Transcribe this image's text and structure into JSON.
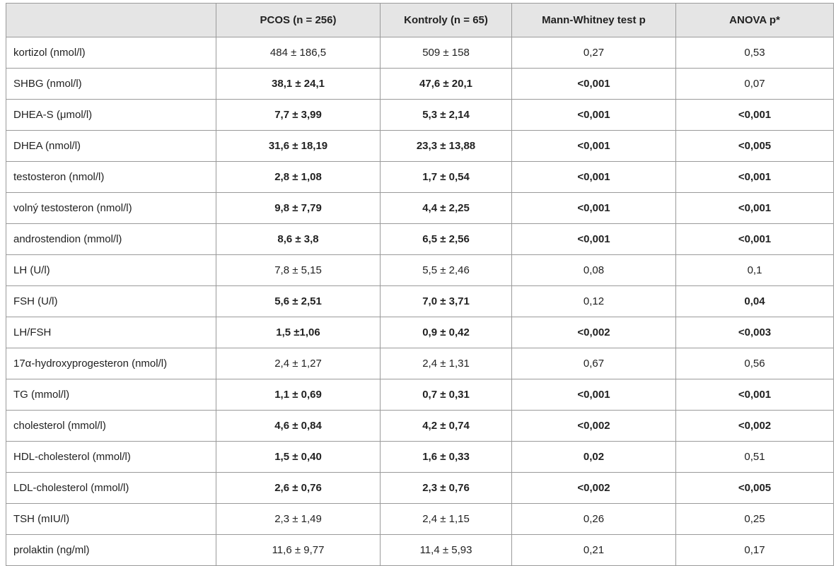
{
  "table": {
    "header": [
      "",
      "PCOS (n = 256)",
      "Kontroly (n = 65)",
      "Mann-Whitney test p",
      "ANOVA p*"
    ],
    "rows": [
      {
        "cells": [
          "kortizol (nmol/l)",
          "484 ± 186,5",
          "509 ± 158",
          "0,27",
          "0,53"
        ],
        "bold": [
          false,
          false,
          false,
          false
        ]
      },
      {
        "cells": [
          "SHBG (nmol/l)",
          "38,1 ± 24,1",
          "47,6 ± 20,1",
          "<0,001",
          "0,07"
        ],
        "bold": [
          true,
          true,
          true,
          false
        ]
      },
      {
        "cells": [
          "DHEA-S (μmol/l)",
          "7,7 ± 3,99",
          "5,3 ± 2,14",
          "<0,001",
          "<0,001"
        ],
        "bold": [
          true,
          true,
          true,
          true
        ]
      },
      {
        "cells": [
          "DHEA (nmol/l)",
          "31,6 ± 18,19",
          "23,3 ± 13,88",
          "<0,001",
          "<0,005"
        ],
        "bold": [
          true,
          true,
          true,
          true
        ]
      },
      {
        "cells": [
          "testosteron (nmol/l)",
          "2,8 ± 1,08",
          "1,7 ± 0,54",
          "<0,001",
          "<0,001"
        ],
        "bold": [
          true,
          true,
          true,
          true
        ]
      },
      {
        "cells": [
          "volný testosteron (nmol/l)",
          "9,8 ± 7,79",
          "4,4 ± 2,25",
          "<0,001",
          "<0,001"
        ],
        "bold": [
          true,
          true,
          true,
          true
        ]
      },
      {
        "cells": [
          "androstendion (mmol/l)",
          "8,6 ± 3,8",
          "6,5 ± 2,56",
          "<0,001",
          "<0,001"
        ],
        "bold": [
          true,
          true,
          true,
          true
        ]
      },
      {
        "cells": [
          "LH (U/l)",
          "7,8 ± 5,15",
          "5,5 ± 2,46",
          "0,08",
          "0,1"
        ],
        "bold": [
          false,
          false,
          false,
          false
        ]
      },
      {
        "cells": [
          "FSH (U/l)",
          "5,6 ± 2,51",
          "7,0 ± 3,71",
          "0,12",
          "0,04"
        ],
        "bold": [
          true,
          true,
          false,
          true
        ]
      },
      {
        "cells": [
          "LH/FSH",
          "1,5 ±1,06",
          "0,9 ± 0,42",
          "<0,002",
          "<0,003"
        ],
        "bold": [
          true,
          true,
          true,
          true
        ]
      },
      {
        "cells": [
          "17α-hydroxyprogesteron (nmol/l)",
          "2,4 ± 1,27",
          "2,4 ± 1,31",
          "0,67",
          "0,56"
        ],
        "bold": [
          false,
          false,
          false,
          false
        ]
      },
      {
        "cells": [
          "TG (mmol/l)",
          "1,1 ± 0,69",
          "0,7 ± 0,31",
          "<0,001",
          "<0,001"
        ],
        "bold": [
          true,
          true,
          true,
          true
        ]
      },
      {
        "cells": [
          "cholesterol (mmol/l)",
          "4,6 ± 0,84",
          "4,2 ± 0,74",
          "<0,002",
          "<0,002"
        ],
        "bold": [
          true,
          true,
          true,
          true
        ]
      },
      {
        "cells": [
          "HDL-cholesterol (mmol/l)",
          "1,5 ± 0,40",
          "1,6 ± 0,33",
          "0,02",
          "0,51"
        ],
        "bold": [
          true,
          true,
          true,
          false
        ]
      },
      {
        "cells": [
          "LDL-cholesterol (mmol/l)",
          "2,6 ± 0,76",
          "2,3 ± 0,76",
          "<0,002",
          "<0,005"
        ],
        "bold": [
          true,
          true,
          true,
          true
        ]
      },
      {
        "cells": [
          "TSH (mIU/l)",
          "2,3 ± 1,49",
          "2,4 ± 1,15",
          "0,26",
          "0,25"
        ],
        "bold": [
          false,
          false,
          false,
          false
        ]
      },
      {
        "cells": [
          "prolaktin (ng/ml)",
          "11,6 ± 9,77",
          "11,4 ± 5,93",
          "0,21",
          "0,17"
        ],
        "bold": [
          false,
          false,
          false,
          false
        ]
      }
    ]
  }
}
